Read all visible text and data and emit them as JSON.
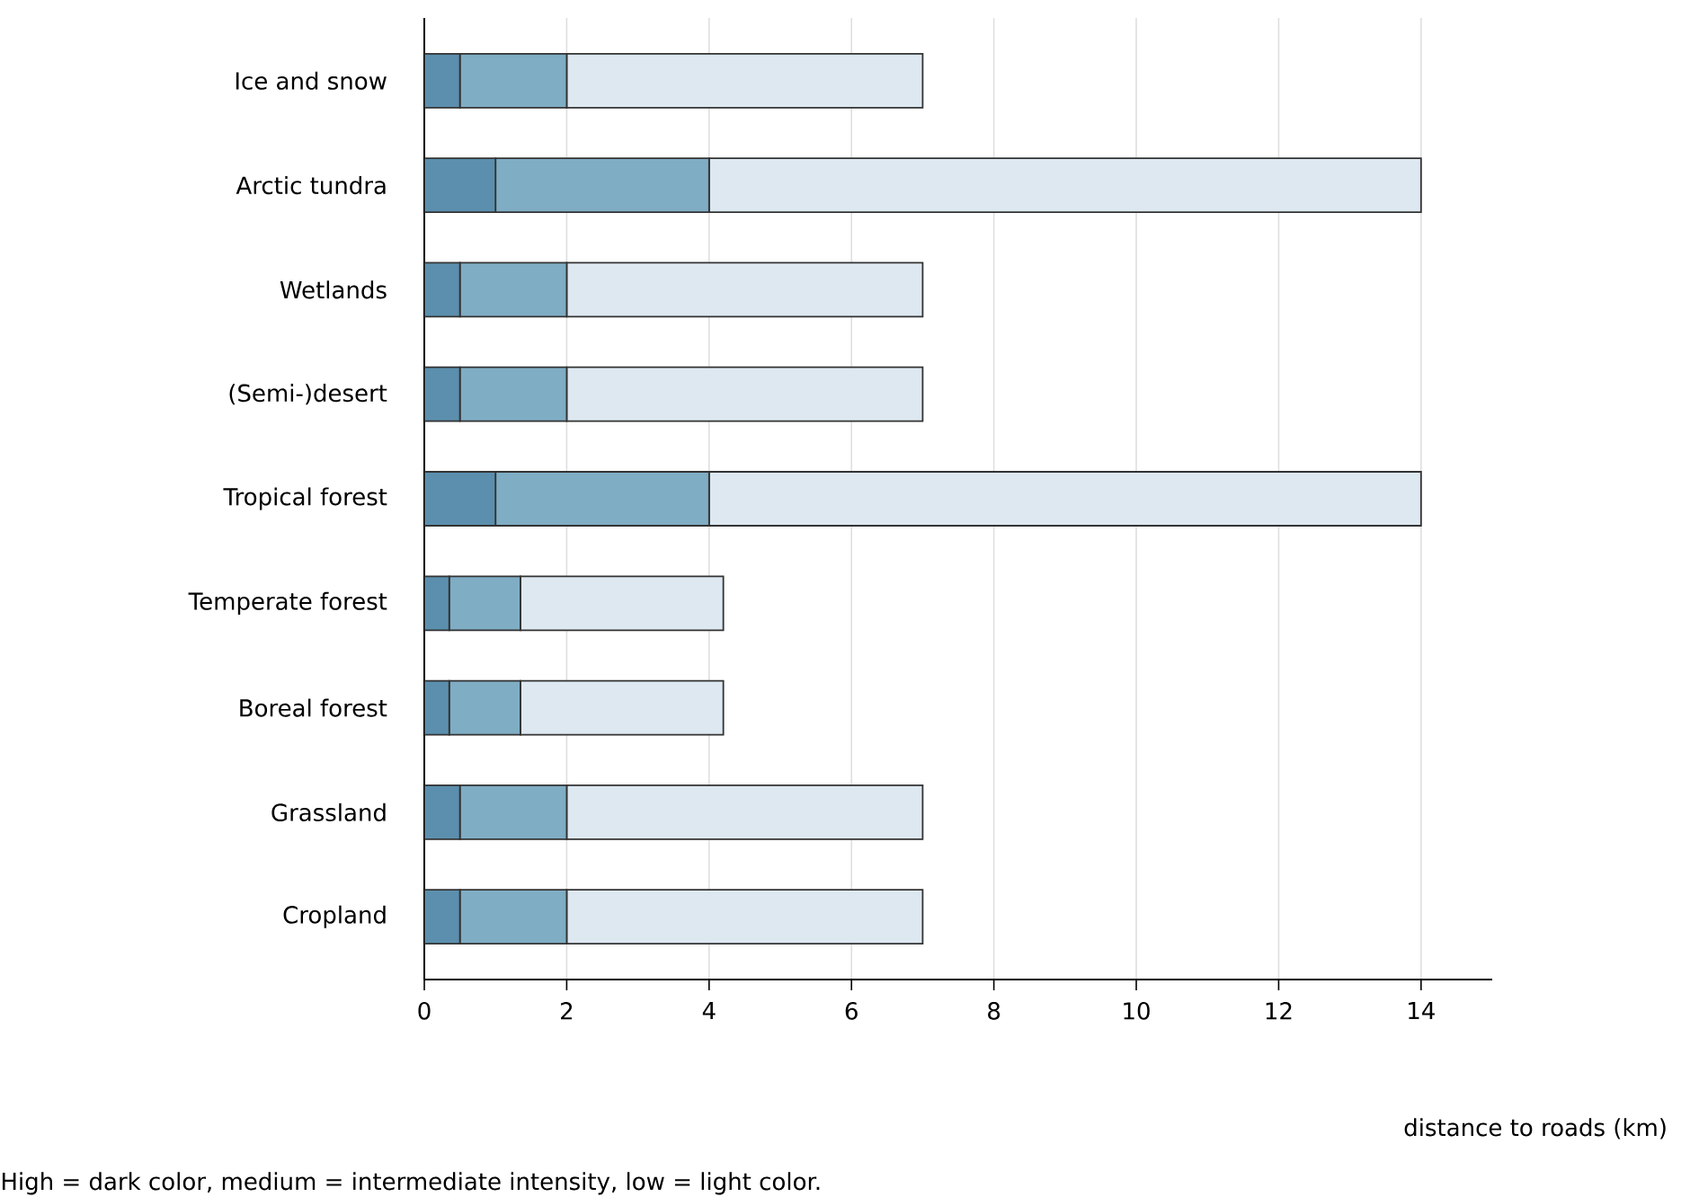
{
  "chart_data": {
    "type": "bar",
    "orientation": "horizontal",
    "stacked": true,
    "grid": "x",
    "xlabel": "distance to roads (km)",
    "annotations": [
      "High = dark color, medium = intermediate intensity, low = light color."
    ],
    "categories": [
      "Ice and snow",
      "Arctic tundra",
      "Wetlands",
      "(Semi-)desert",
      "Tropical forest",
      "Temperate forest",
      "Boreal forest",
      "Grassland",
      "Cropland"
    ],
    "series": [
      {
        "color": "#5b8fad",
        "values": [
          0.5,
          1,
          0.5,
          0.5,
          1,
          0.35,
          0.35,
          0.5,
          0.5
        ]
      },
      {
        "color": "#7fadc4",
        "values": [
          1.5,
          3,
          1.5,
          1.5,
          3,
          1.0,
          1.0,
          1.5,
          1.5
        ]
      },
      {
        "color": "#dde8f1",
        "values": [
          5,
          10,
          5,
          5,
          10,
          2.85,
          2.85,
          5,
          5
        ]
      }
    ],
    "xlim": [
      0,
      15
    ],
    "xticks": [
      0,
      2,
      4,
      6,
      8,
      10,
      12,
      14
    ]
  }
}
